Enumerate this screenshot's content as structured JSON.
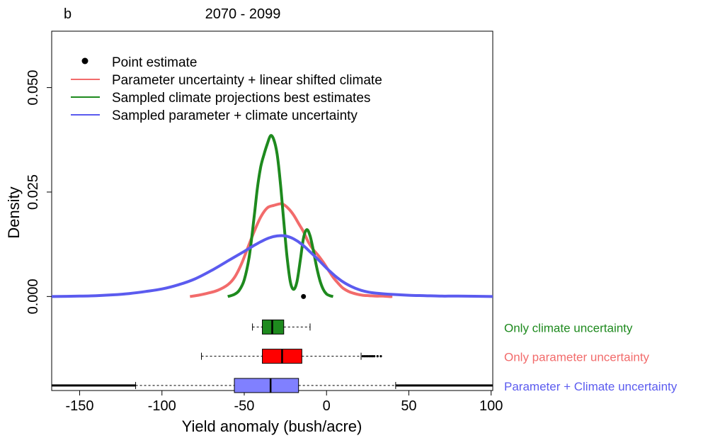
{
  "chart_data": {
    "type": "line",
    "panel_label": "b",
    "title": "2070 - 2099",
    "xlabel": "Yield anomaly (bush/acre)",
    "ylabel": "Density",
    "xlim": [
      -167,
      101
    ],
    "ylim": [
      -0.0225,
      0.0635
    ],
    "x_ticks": [
      {
        "value": -150,
        "label": "-150"
      },
      {
        "value": -100,
        "label": "-100"
      },
      {
        "value": -50,
        "label": "-50"
      },
      {
        "value": 0,
        "label": "0"
      },
      {
        "value": 50,
        "label": "50"
      },
      {
        "value": 100,
        "label": "100"
      }
    ],
    "y_ticks": [
      {
        "value": 0.0,
        "label": "0.000"
      },
      {
        "value": 0.025,
        "label": "0.025"
      },
      {
        "value": 0.05,
        "label": "0.050"
      }
    ],
    "legend": {
      "placement": "top-left",
      "entries": [
        {
          "label": "Point estimate",
          "marker": "point",
          "color": "#000000"
        },
        {
          "label": "Parameter uncertainty + linear shifted climate",
          "marker": "line",
          "color": "#f26b6b"
        },
        {
          "label": "Sampled climate projections best estimates",
          "marker": "line",
          "color": "#1e8a1e"
        },
        {
          "label": "Sampled parameter + climate uncertainty",
          "marker": "line",
          "color": "#5b5bef"
        }
      ]
    },
    "point_estimate": {
      "x": -14,
      "y": 0.0
    },
    "series": [
      {
        "color": "#f26b6b",
        "x": [
          -83,
          -78,
          -72,
          -66,
          -60,
          -56,
          -52,
          -48,
          -44,
          -40,
          -36,
          -32,
          -28,
          -26,
          -23,
          -20,
          -17,
          -14,
          -11,
          -8,
          -5,
          -2,
          1,
          4,
          7,
          10,
          14,
          18,
          22,
          26,
          30,
          34,
          38,
          40
        ],
        "y": [
          0.0,
          0.0003,
          0.0008,
          0.0015,
          0.0028,
          0.0045,
          0.0075,
          0.0115,
          0.0155,
          0.019,
          0.0212,
          0.0218,
          0.0222,
          0.022,
          0.021,
          0.0195,
          0.0175,
          0.0155,
          0.013,
          0.0112,
          0.0098,
          0.0082,
          0.0064,
          0.0046,
          0.0032,
          0.002,
          0.0011,
          0.0006,
          0.0003,
          0.0002,
          0.0001,
          0.0001,
          0.0,
          0.0
        ]
      },
      {
        "color": "#1e8a1e",
        "x": [
          -60,
          -56,
          -53,
          -50,
          -47,
          -44,
          -42,
          -40,
          -38,
          -36,
          -34,
          -32,
          -30,
          -28,
          -26,
          -24,
          -22,
          -20,
          -18,
          -16,
          -14,
          -12,
          -10,
          -8,
          -6,
          -4,
          -2,
          0,
          2,
          4
        ],
        "y": [
          0.0,
          0.0005,
          0.0015,
          0.004,
          0.0095,
          0.019,
          0.026,
          0.031,
          0.034,
          0.0365,
          0.0385,
          0.0375,
          0.034,
          0.027,
          0.018,
          0.0095,
          0.0035,
          0.0017,
          0.0035,
          0.0085,
          0.014,
          0.016,
          0.0145,
          0.011,
          0.007,
          0.0038,
          0.0017,
          0.0006,
          0.0002,
          0.0
        ]
      },
      {
        "color": "#5b5bef",
        "x": [
          -167,
          -150,
          -140,
          -130,
          -120,
          -110,
          -100,
          -90,
          -80,
          -70,
          -60,
          -50,
          -45,
          -40,
          -35,
          -30,
          -25,
          -20,
          -15,
          -10,
          -5,
          0,
          5,
          10,
          15,
          20,
          25,
          30,
          40,
          50,
          60,
          70,
          80,
          101
        ],
        "y": [
          0.0,
          0.0001,
          0.0002,
          0.0004,
          0.0007,
          0.0012,
          0.0018,
          0.0028,
          0.0042,
          0.0062,
          0.0085,
          0.0108,
          0.012,
          0.0131,
          0.014,
          0.0145,
          0.0145,
          0.0138,
          0.0125,
          0.0107,
          0.0088,
          0.0068,
          0.005,
          0.0035,
          0.0024,
          0.0016,
          0.0011,
          0.0008,
          0.0005,
          0.0003,
          0.0002,
          0.0001,
          0.0001,
          0.0
        ]
      }
    ],
    "boxplots": [
      {
        "label": "Only climate uncertainty",
        "color": "#1e8a1e",
        "label_color": "#1e8a1e",
        "y": -0.0073,
        "whisker_low": -45,
        "q1": -39,
        "median": -33,
        "q3": -26,
        "whisker_high": -10,
        "outliers": []
      },
      {
        "label": "Only parameter uncertainty",
        "color": "#ff0000",
        "label_color": "#f26b6b",
        "y": -0.0143,
        "whisker_low": -76,
        "q1": -39,
        "median": -27,
        "q3": -15,
        "whisker_high": 21,
        "outliers": [
          22,
          23,
          24,
          25,
          26,
          27,
          28,
          29,
          31,
          33
        ]
      },
      {
        "label": "Parameter + Climate uncertainty",
        "color": "#8080ff",
        "label_color": "#5b5bef",
        "y": -0.0213,
        "whisker_low": -116,
        "q1": -56,
        "median": -34,
        "q3": -17,
        "whisker_high": 42,
        "outlier_segments": [
          [
            -167,
            -116
          ],
          [
            42,
            101
          ]
        ]
      }
    ]
  }
}
